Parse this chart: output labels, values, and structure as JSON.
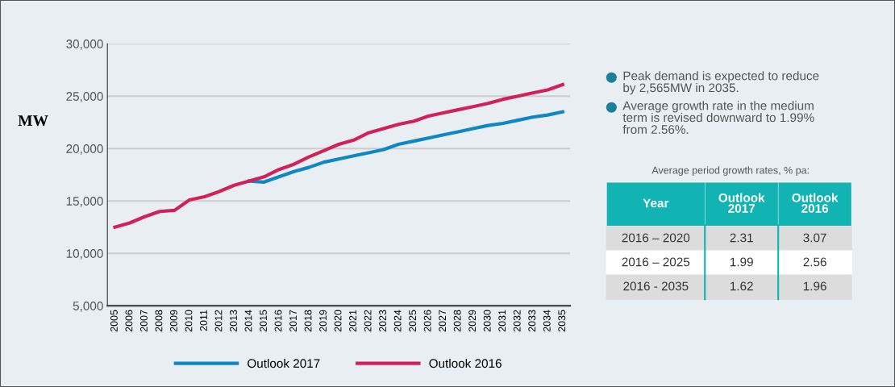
{
  "chart_data": [
    {
      "type": "line",
      "ylabel": "MW",
      "categories": [
        "2005",
        "2006",
        "2007",
        "2008",
        "2009",
        "2010",
        "2011",
        "2012",
        "2013",
        "2014",
        "2015",
        "2016",
        "2017",
        "2018",
        "2019",
        "2020",
        "2021",
        "2022",
        "2023",
        "2024",
        "2025",
        "2026",
        "2027",
        "2028",
        "2029",
        "2030",
        "2031",
        "2032",
        "2033",
        "2034",
        "2035"
      ],
      "series": [
        {
          "name": "Outlook 2017",
          "color": "#0f86c6",
          "values": [
            null,
            null,
            null,
            null,
            null,
            null,
            null,
            null,
            null,
            16900,
            16800,
            17300,
            17800,
            18200,
            18700,
            19000,
            19300,
            19600,
            19900,
            20400,
            20700,
            21000,
            21300,
            21600,
            21900,
            22200,
            22400,
            22700,
            23000,
            23200,
            23500
          ]
        },
        {
          "name": "Outlook 2016",
          "color": "#d4205a",
          "values": [
            12500,
            12900,
            13500,
            14000,
            14100,
            15100,
            15400,
            15900,
            16500,
            16900,
            17300,
            18000,
            18500,
            19200,
            19800,
            20400,
            20800,
            21500,
            21900,
            22300,
            22600,
            23100,
            23400,
            23700,
            24000,
            24300,
            24700,
            25000,
            25300,
            25600,
            26100
          ]
        }
      ],
      "ylim": [
        5000,
        30000
      ],
      "yticks": [
        {
          "value": 5000,
          "label": "5,000"
        },
        {
          "value": 10000,
          "label": "10,000"
        },
        {
          "value": 15000,
          "label": "15,000"
        },
        {
          "value": 20000,
          "label": "20,000"
        },
        {
          "value": 25000,
          "label": "25,000"
        },
        {
          "value": 30000,
          "label": "30,000"
        }
      ],
      "grid": "y",
      "legend": "bottom",
      "marker": "none",
      "line_style": "solid"
    },
    {
      "type": "other",
      "title": "Average period growth rates, % pa:",
      "annotations": [
        "Peak demand is expected to reduce\nby 2,565MW in 2035.",
        "Average growth rate in the medium\nterm is revised downward to 1.99%\nfrom 2.56%."
      ],
      "ylabel": "Year",
      "categories": [
        "Outlook\n2017",
        "Outlook\n2016"
      ],
      "y_categories": [
        "2016 – 2020",
        "2016 – 2025",
        "2016 - 2035"
      ],
      "cell_labels": [
        [
          "2.31",
          "3.07"
        ],
        [
          "1.99",
          "2.56"
        ],
        [
          "1.62",
          "1.96"
        ]
      ]
    }
  ]
}
